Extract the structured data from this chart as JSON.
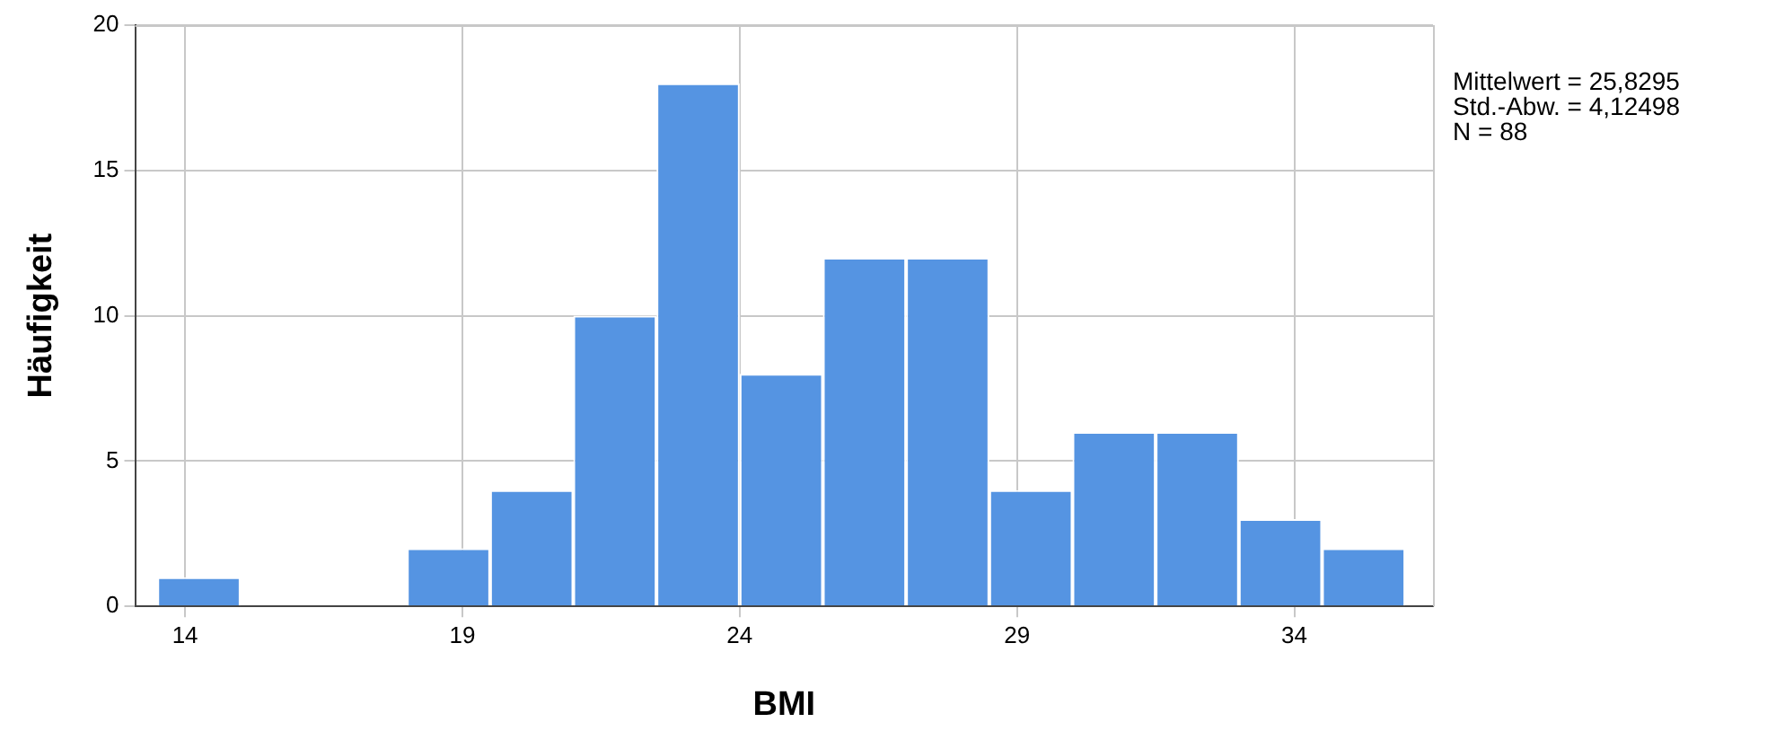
{
  "chart_data": {
    "type": "histogram",
    "xlabel": "BMI",
    "ylabel": "Häufigkeit",
    "bins": [
      13.5,
      15,
      16.5,
      18,
      19.5,
      21,
      22.5,
      24,
      25.5,
      27,
      28.5,
      30,
      31.5,
      33,
      34.5,
      36
    ],
    "values": [
      1,
      0,
      0,
      2,
      4,
      10,
      18,
      8,
      12,
      12,
      4,
      6,
      6,
      3,
      2
    ],
    "color": "#5594e2",
    "xlim": [
      13.1,
      36.5
    ],
    "xticks": [
      14,
      19,
      24,
      29,
      34
    ],
    "ylim": [
      0,
      20
    ],
    "yticks": [
      0,
      5,
      10,
      15,
      20
    ],
    "grid": true,
    "legend": false,
    "annotations": [
      "Mittelwert = 25,8295",
      "Std.-Abw. = 4,12498",
      "N = 88"
    ]
  }
}
